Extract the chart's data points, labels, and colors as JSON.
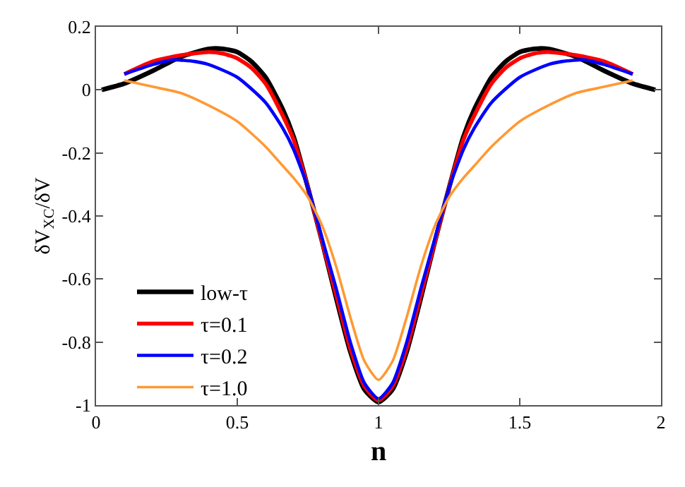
{
  "chart_data": {
    "type": "line",
    "xlabel": "n",
    "ylabel": "δV$_{XC}$/δV",
    "xlim": [
      0,
      2
    ],
    "ylim": [
      -1,
      0.2
    ],
    "xticks": [
      0,
      0.5,
      1,
      1.5,
      2
    ],
    "yticks": [
      -1,
      -0.8,
      -0.6,
      -0.4,
      -0.2,
      0,
      0.2
    ],
    "grid": false,
    "legend": "left",
    "marker": "none",
    "line_style": "solid",
    "series": [
      {
        "name": "low-τ",
        "color": "#000000",
        "x": [
          0.02,
          0.1,
          0.2,
          0.3,
          0.4,
          0.45,
          0.5,
          0.55,
          0.6,
          0.66,
          0.7,
          0.75,
          0.8,
          0.85,
          0.9,
          0.95,
          1,
          1.05,
          1.1,
          1.15,
          1.2,
          1.25,
          1.3,
          1.34,
          1.4,
          1.45,
          1.5,
          1.55,
          1.6,
          1.7,
          1.8,
          1.9,
          1.98
        ],
        "values": [
          0,
          0.02,
          0.06,
          0.105,
          0.13,
          0.13,
          0.12,
          0.09,
          0.04,
          -0.06,
          -0.15,
          -0.31,
          -0.48,
          -0.66,
          -0.83,
          -0.95,
          -0.99,
          -0.95,
          -0.83,
          -0.66,
          -0.48,
          -0.31,
          -0.15,
          -0.06,
          0.04,
          0.09,
          0.12,
          0.13,
          0.13,
          0.105,
          0.06,
          0.02,
          0
        ]
      },
      {
        "name": "τ=0.1",
        "color": "#ff0000",
        "x": [
          0.1,
          0.2,
          0.3,
          0.4,
          0.45,
          0.5,
          0.55,
          0.6,
          0.66,
          0.7,
          0.75,
          0.8,
          0.85,
          0.9,
          0.95,
          1,
          1.05,
          1.1,
          1.15,
          1.2,
          1.25,
          1.3,
          1.34,
          1.4,
          1.45,
          1.5,
          1.55,
          1.6,
          1.7,
          1.8,
          1.9
        ],
        "values": [
          0.05,
          0.09,
          0.11,
          0.12,
          0.115,
          0.1,
          0.07,
          0.02,
          -0.08,
          -0.16,
          -0.31,
          -0.48,
          -0.65,
          -0.82,
          -0.94,
          -0.985,
          -0.94,
          -0.82,
          -0.65,
          -0.48,
          -0.31,
          -0.16,
          -0.08,
          0.02,
          0.07,
          0.1,
          0.115,
          0.12,
          0.11,
          0.09,
          0.05
        ]
      },
      {
        "name": "τ=0.2",
        "color": "#0000ff",
        "x": [
          0.1,
          0.2,
          0.27,
          0.35,
          0.4,
          0.5,
          0.6,
          0.66,
          0.7,
          0.75,
          0.8,
          0.85,
          0.9,
          0.95,
          1,
          1.05,
          1.1,
          1.15,
          1.2,
          1.25,
          1.3,
          1.34,
          1.4,
          1.5,
          1.6,
          1.65,
          1.73,
          1.8,
          1.9
        ],
        "values": [
          0.05,
          0.08,
          0.095,
          0.09,
          0.08,
          0.04,
          -0.04,
          -0.12,
          -0.19,
          -0.31,
          -0.47,
          -0.63,
          -0.8,
          -0.93,
          -0.98,
          -0.93,
          -0.8,
          -0.63,
          -0.47,
          -0.31,
          -0.19,
          -0.12,
          -0.04,
          0.04,
          0.08,
          0.09,
          0.095,
          0.08,
          0.05
        ]
      },
      {
        "name": "τ=1.0",
        "color": "#ff9933",
        "x": [
          0.1,
          0.2,
          0.3,
          0.4,
          0.5,
          0.6,
          0.66,
          0.7,
          0.75,
          0.8,
          0.85,
          0.9,
          0.95,
          1,
          1.05,
          1.1,
          1.15,
          1.2,
          1.25,
          1.3,
          1.34,
          1.4,
          1.5,
          1.6,
          1.7,
          1.8,
          1.9
        ],
        "values": [
          0.03,
          0.01,
          -0.01,
          -0.05,
          -0.1,
          -0.18,
          -0.24,
          -0.28,
          -0.34,
          -0.43,
          -0.56,
          -0.72,
          -0.86,
          -0.92,
          -0.86,
          -0.72,
          -0.56,
          -0.43,
          -0.34,
          -0.28,
          -0.24,
          -0.18,
          -0.1,
          -0.05,
          -0.01,
          0.01,
          0.03
        ]
      }
    ]
  }
}
